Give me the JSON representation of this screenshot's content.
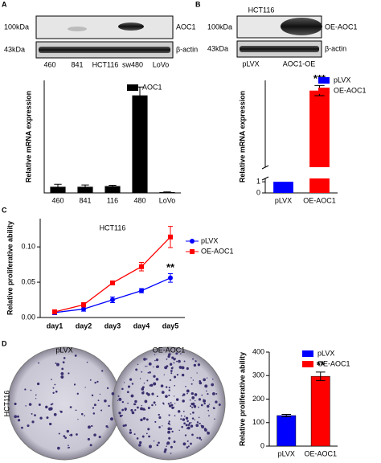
{
  "panel_labels": [
    "A",
    "B",
    "C",
    "D"
  ],
  "blots": [
    {
      "rows": [
        {
          "size": "100kDa",
          "protein": "AOC1"
        },
        {
          "size": "43kDa",
          "protein": "β-actin"
        }
      ],
      "lanes": [
        "460",
        "841",
        "HCT116",
        "sw480",
        "LoVo"
      ]
    },
    {
      "title": "HCT116",
      "rows": [
        {
          "size": "100kDa",
          "protein": "OE-AOC1"
        },
        {
          "size": "43kDa",
          "protein": "β-actin"
        }
      ],
      "lanes": [
        "pLVX",
        "AOC1-OE"
      ]
    }
  ],
  "dishes": {
    "row_label": "HCT116",
    "columns": [
      "pLVX",
      "OE-AOC1"
    ]
  },
  "chart_data": [
    {
      "type": "bar",
      "ylabel": "Relative mRNA expression",
      "categories": [
        "460",
        "841",
        "116",
        "480",
        "LoVo"
      ],
      "series": [
        {
          "name": "AOC1",
          "color": "#000000",
          "values": [
            0.9,
            0.9,
            1.0,
            14.7,
            0.1
          ],
          "errors": [
            0.4,
            0.3,
            0.15,
            1.3,
            0.05
          ]
        }
      ],
      "ylim": [
        0,
        17
      ],
      "legend": "top-right"
    },
    {
      "type": "broken-bar",
      "ylabel": "Relative mRNA expression",
      "categories": [
        "pLVX",
        "OE-AOC1"
      ],
      "colors": [
        "#0000ff",
        "#ff0000"
      ],
      "values": [
        1,
        640
      ],
      "errors": [
        0,
        40
      ],
      "ylim_lower": [
        0,
        1.3
      ],
      "ylim_upper": [
        40,
        720
      ],
      "yticks": [
        0,
        1
      ],
      "annotation": "***",
      "legend": "top-right"
    },
    {
      "type": "line",
      "title": "HCT116",
      "ylabel": "Relative proliferative ability",
      "categories": [
        "day1",
        "day2",
        "day3",
        "day4",
        "day5"
      ],
      "series": [
        {
          "name": "pLVX",
          "color": "#0000ff",
          "marker": "circle",
          "values": [
            0.007,
            0.012,
            0.025,
            0.038,
            0.056
          ],
          "errors": [
            0.003,
            0.003,
            0.004,
            0.003,
            0.006
          ]
        },
        {
          "name": "OE-AOC1",
          "color": "#ff0000",
          "marker": "square",
          "values": [
            0.008,
            0.018,
            0.049,
            0.072,
            0.114
          ],
          "errors": [
            0.003,
            0.003,
            0.002,
            0.006,
            0.015
          ]
        }
      ],
      "ylim": [
        0,
        0.14
      ],
      "yticks": [
        {
          "value": 0,
          "label": "0.00"
        },
        {
          "value": 0.05,
          "label": "0.05"
        },
        {
          "value": 0.1,
          "label": "0.10"
        }
      ],
      "annotation": "**",
      "legend": "top-right"
    },
    {
      "type": "bar",
      "ylabel": "Relative proliferative ability",
      "categories": [
        "pLVX",
        "OE-AOC1"
      ],
      "colors": [
        "#0000ff",
        "#ff0000"
      ],
      "values": [
        130,
        297
      ],
      "errors": [
        5,
        18
      ],
      "ylim": [
        0,
        400
      ],
      "yticks": [
        0,
        100,
        200,
        300,
        400
      ],
      "annotation": "**",
      "legend": "top-right"
    }
  ]
}
